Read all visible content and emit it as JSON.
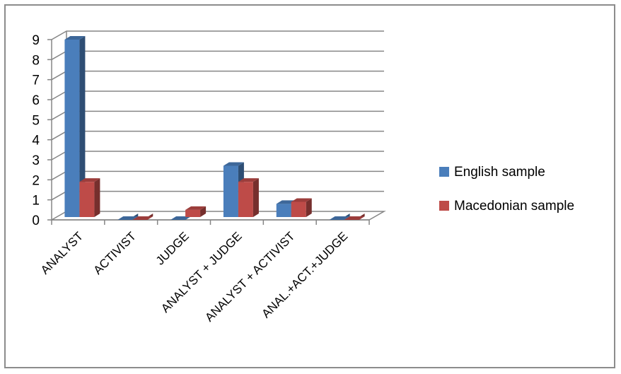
{
  "chart_data": {
    "type": "bar",
    "categories": [
      "ANALYST",
      "ACTIVIST",
      "JUDGE",
      "ANALYST + JUDGE",
      "ANALYST + ACTIVIST",
      "ANAL.+ACT.+JUDGE"
    ],
    "series": [
      {
        "name": "English sample",
        "values": [
          9,
          0,
          0,
          2.7,
          0.8,
          0
        ],
        "color": "#4a7ebb"
      },
      {
        "name": "Macedonian sample",
        "values": [
          1.9,
          0,
          0.5,
          1.9,
          0.9,
          0
        ],
        "color": "#be4b48"
      }
    ],
    "yticks": [
      "0",
      "1",
      "2",
      "3",
      "4",
      "5",
      "6",
      "7",
      "8",
      "9"
    ],
    "ylim": [
      0,
      9
    ],
    "grid": true,
    "legend": "right",
    "style": "3d-clustered-column"
  }
}
